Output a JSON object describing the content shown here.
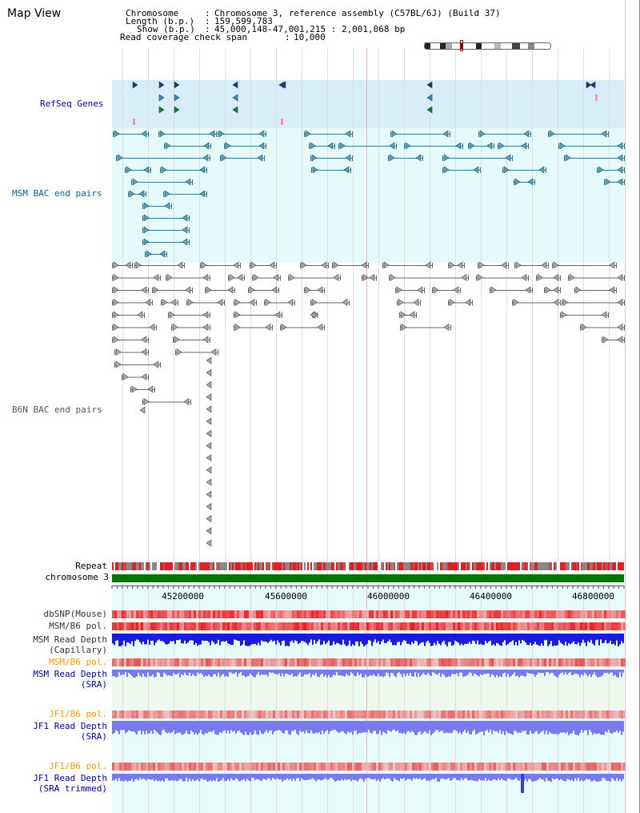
{
  "page": {
    "title": "Map View"
  },
  "info": {
    "chromosome_key": "Chromosome",
    "chromosome_value": "Chromosome 3, reference assembly (C57BL/6J) (Build 37)",
    "length_key": "Length (b.p.)",
    "length_value": "159,599,783",
    "show_key": "Show (b.p.)",
    "show_value": "45,000,148-47,001,215 : 2,001,068 bp",
    "span_key": "Read coverage check span",
    "span_value": "10,000"
  },
  "tracks": {
    "refseq_genes": {
      "label": "RefSeq Genes",
      "color": "#0000cc"
    },
    "msm_bac": {
      "label": "MSM BAC end pairs",
      "color": "#006699"
    },
    "b6n_bac": {
      "label": "B6N BAC end pairs",
      "color": "#555555"
    },
    "repeat": {
      "label": "Repeat"
    },
    "chromosome": {
      "label": "chromosome 3",
      "color": "#007700"
    }
  },
  "axis": {
    "ticks": [
      "45200000",
      "45600000",
      "46000000",
      "46400000",
      "46800000"
    ]
  },
  "lower_tracks": {
    "dbsnp": {
      "label": "dbSNP(Mouse)"
    },
    "msm_b6_pol_1": {
      "label": "MSM/B6 pol."
    },
    "msm_depth_cap": {
      "line1": "MSM Read Depth",
      "line2": "(Capillary)"
    },
    "msm_b6_pol_2": {
      "label": "MSM/B6 pol."
    },
    "msm_depth_sra": {
      "line1": "MSM Read Depth",
      "line2": "(SRA)"
    },
    "jf1_b6_pol_1": {
      "label": "JF1/B6 pol."
    },
    "jf1_depth_sra": {
      "line1": "JF1 Read Depth",
      "line2": "(SRA)"
    },
    "jf1_b6_pol_2": {
      "label": "JF1/B6 pol."
    },
    "jf1_depth_trim": {
      "line1": "JF1 Read Depth",
      "line2": "(SRA trimmed)"
    }
  },
  "colors": {
    "refseq_bg": "#d7eef9",
    "msm_bg": "#e5fbfb",
    "lower_bg": "#e8fbfb",
    "depth_blue": "#1a1ae0",
    "depth_light": "#7a7af0",
    "pol_red": "#e33030",
    "orange_label": "#ff9900",
    "blue_label": "#0000aa"
  }
}
